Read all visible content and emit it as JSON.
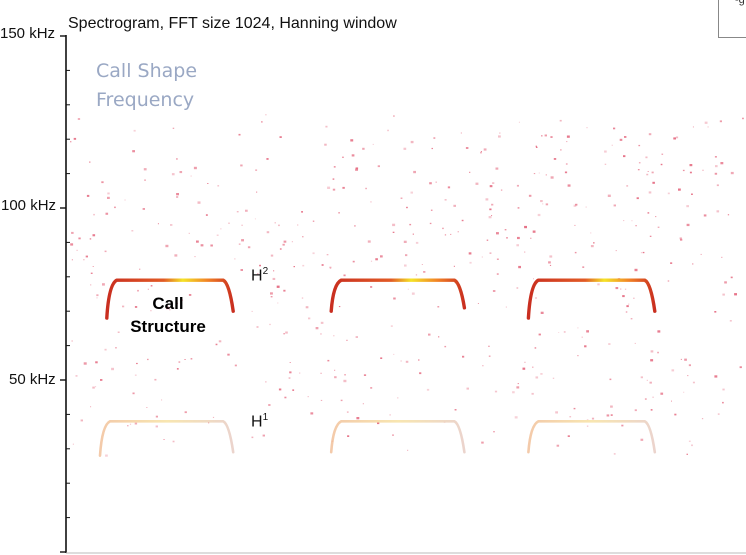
{
  "chart_data": {
    "type": "spectrogram",
    "title": "Spectrogram, FFT size 1024, Hanning window",
    "y_unit": "kHz",
    "ylim": [
      0,
      150
    ],
    "yticks": [
      "150 kHz",
      "100 kHz",
      "50 kHz"
    ],
    "ytick_values": [
      150,
      100,
      50
    ],
    "annotations": {
      "note_line1": "Call Shape",
      "note_line2": "Frequency",
      "call_structure_line1": "Call",
      "call_structure_line2": "Structure",
      "harmonic_2_base": "H",
      "harmonic_2_sup": "2",
      "harmonic_1_base": "H",
      "harmonic_1_sup": "1"
    },
    "calls": [
      {
        "harmonic": "H2",
        "flat_khz": 79,
        "start_khz": 68,
        "end_khz": 70,
        "t_start": 0.06,
        "t_end": 0.24,
        "intensity": "high"
      },
      {
        "harmonic": "H2",
        "flat_khz": 79,
        "start_khz": 70,
        "end_khz": 71,
        "t_start": 0.39,
        "t_end": 0.58,
        "intensity": "high"
      },
      {
        "harmonic": "H2",
        "flat_khz": 79,
        "start_khz": 68,
        "end_khz": 70,
        "t_start": 0.68,
        "t_end": 0.86,
        "intensity": "high"
      },
      {
        "harmonic": "H1",
        "flat_khz": 38,
        "start_khz": 28,
        "end_khz": 29,
        "t_start": 0.05,
        "t_end": 0.24,
        "intensity": "low"
      },
      {
        "harmonic": "H1",
        "flat_khz": 38,
        "start_khz": 29,
        "end_khz": 29,
        "t_start": 0.39,
        "t_end": 0.58,
        "intensity": "low"
      },
      {
        "harmonic": "H1",
        "flat_khz": 38,
        "start_khz": 29,
        "end_khz": 29,
        "t_start": 0.68,
        "t_end": 0.86,
        "intensity": "low"
      }
    ],
    "colors": {
      "low": "#f0c7a0",
      "mid": "#d93a1a",
      "high": "#f4e21c",
      "noise": "#e0506a",
      "axis": "#111111",
      "annotation": "#9aa8c4"
    },
    "grid": false,
    "legend": "none"
  },
  "corner_label": "-g"
}
